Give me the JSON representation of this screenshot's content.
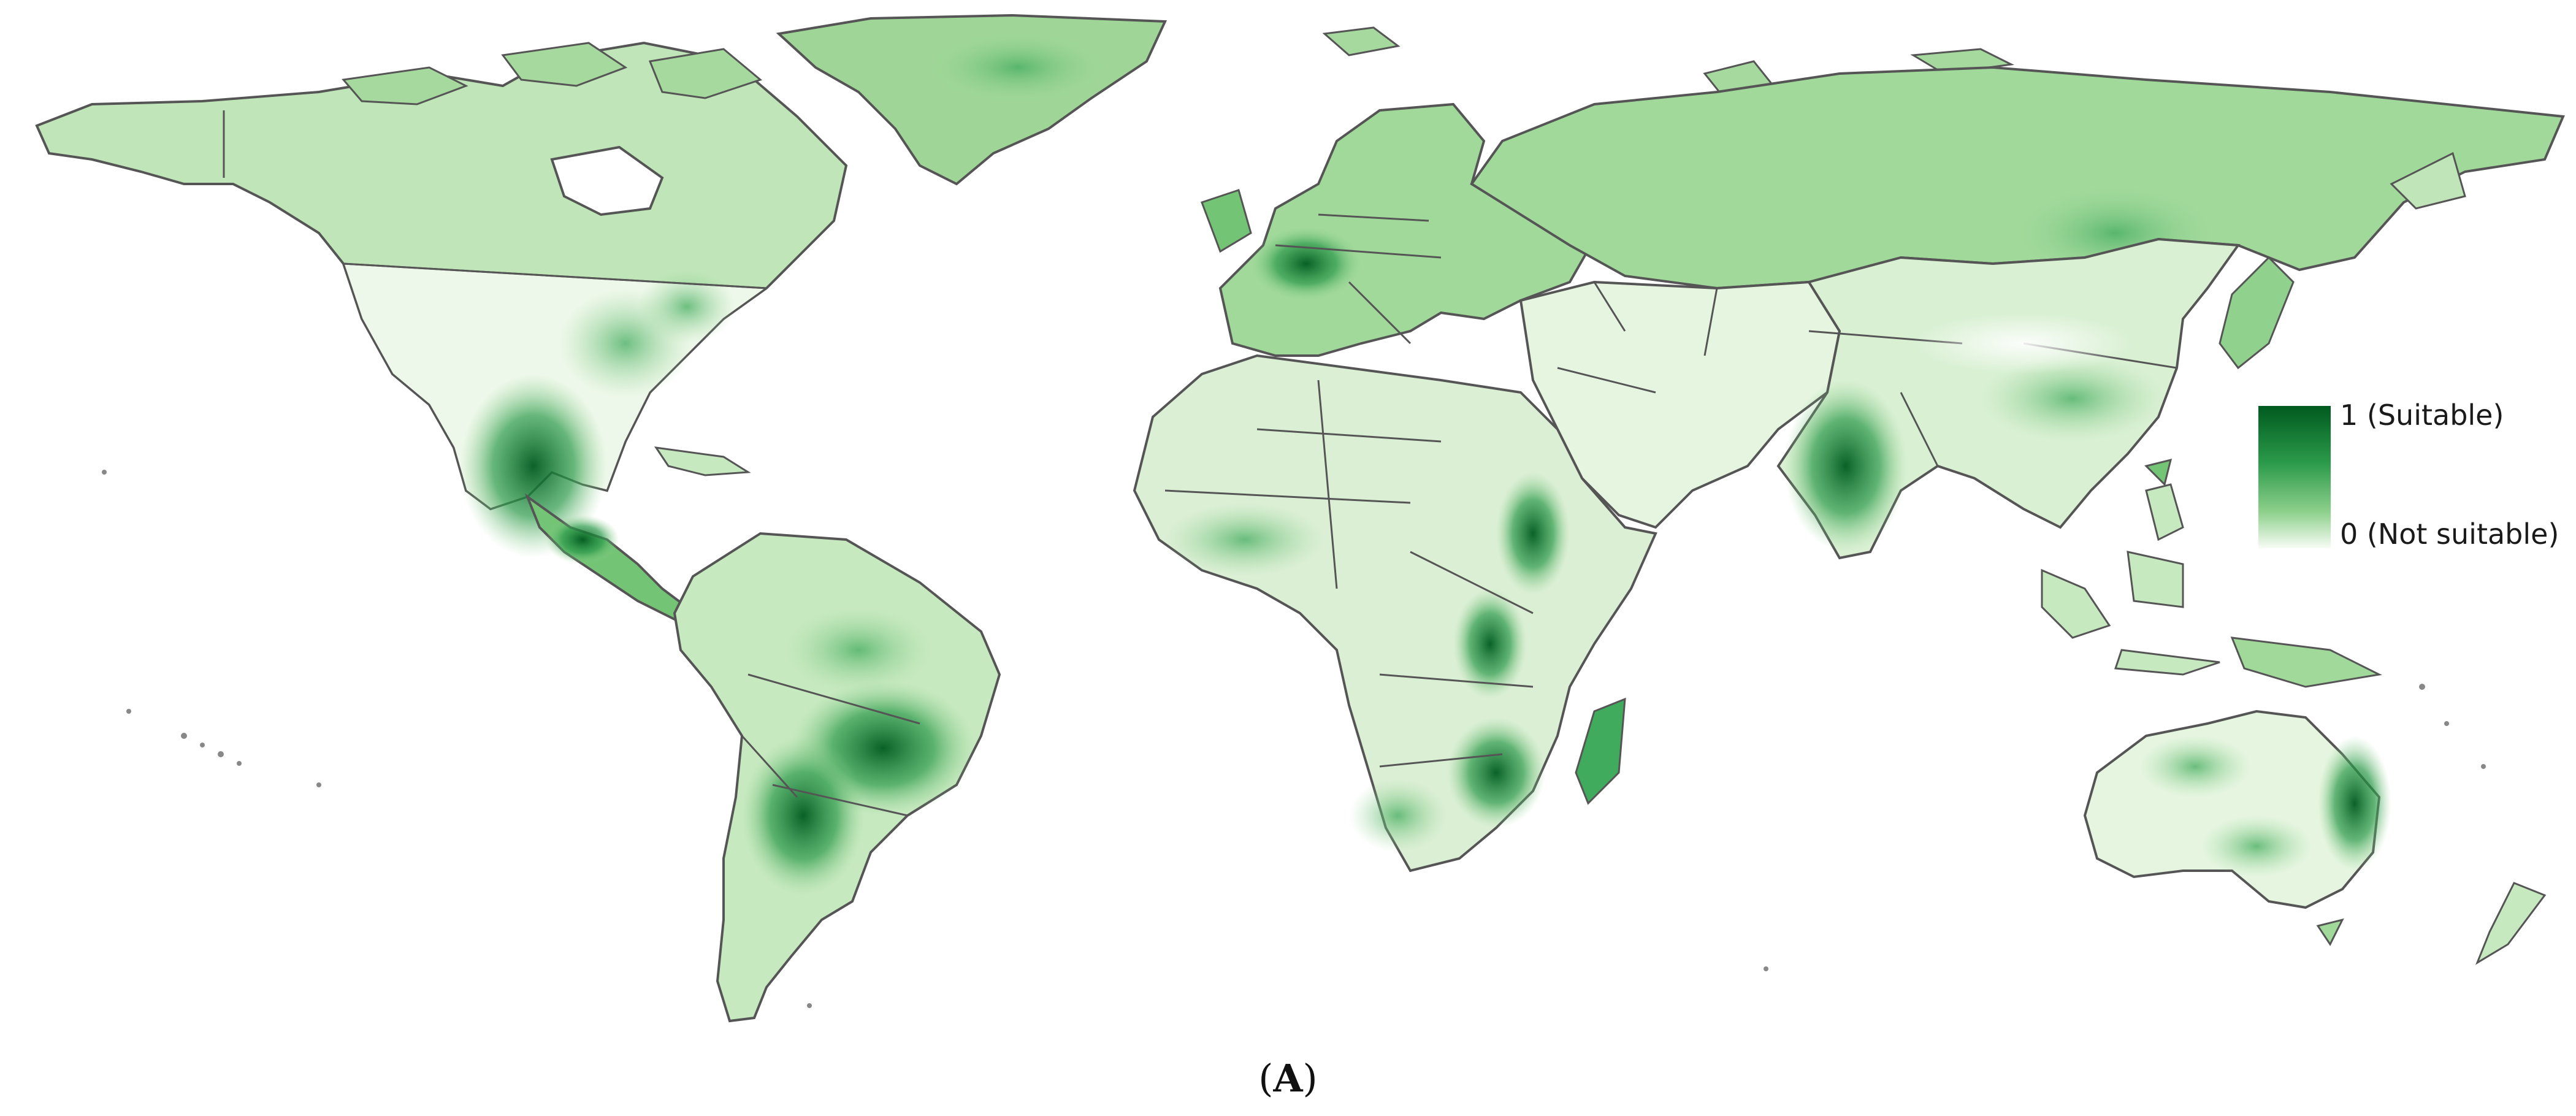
{
  "map": {
    "colors": {
      "not_suitable": "#f7fcf5",
      "low": "#d9f0d3",
      "medium": "#8fd18d",
      "high": "#2b9a4a",
      "suitable": "#005a1f",
      "border": "#555555",
      "ocean": "#ffffff"
    }
  },
  "legend": {
    "max_label": "1 (Suitable)",
    "min_label": "0 (Not suitable)"
  },
  "caption": {
    "open": "(",
    "letter": "A",
    "close": ")"
  }
}
